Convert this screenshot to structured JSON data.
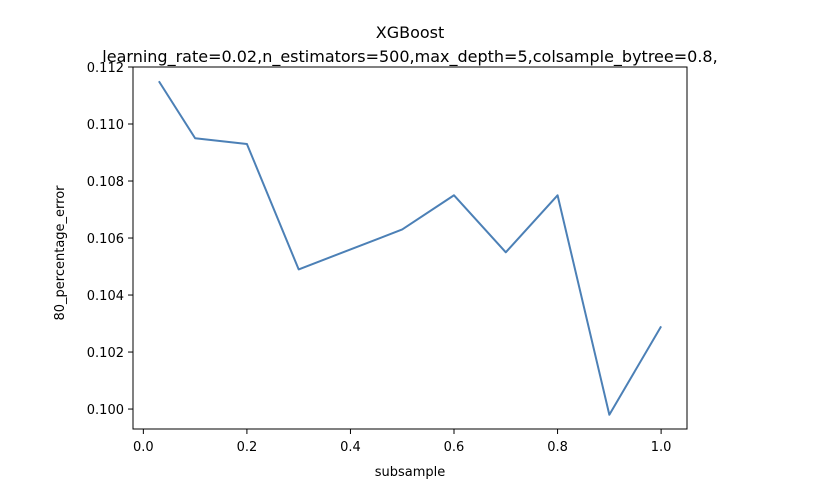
{
  "chart_data": {
    "type": "line",
    "title": "XGBoost",
    "subtitle": "learning_rate=0.02,n_estimators=500,max_depth=5,colsample_bytree=0.8,",
    "xlabel": "subsample",
    "ylabel": "80_percentage_error",
    "xlim": [
      -0.02,
      1.05
    ],
    "ylim": [
      0.0993,
      0.112
    ],
    "x_ticks": [
      0.0,
      0.2,
      0.4,
      0.6,
      0.8,
      1.0
    ],
    "x_tick_labels": [
      "0.0",
      "0.2",
      "0.4",
      "0.6",
      "0.8",
      "1.0"
    ],
    "y_ticks": [
      0.1,
      0.102,
      0.104,
      0.106,
      0.108,
      0.11,
      0.112
    ],
    "y_tick_labels": [
      "0.100",
      "0.102",
      "0.104",
      "0.106",
      "0.108",
      "0.110",
      "0.112"
    ],
    "grid": false,
    "series": [
      {
        "color": "#4c80b6",
        "x": [
          0.03,
          0.1,
          0.2,
          0.3,
          0.4,
          0.5,
          0.6,
          0.7,
          0.8,
          0.9,
          1.0
        ],
        "y": [
          0.1115,
          0.1095,
          0.1093,
          0.1049,
          0.1056,
          0.1063,
          0.1075,
          0.1055,
          0.1075,
          0.0998,
          0.1029
        ]
      }
    ]
  }
}
